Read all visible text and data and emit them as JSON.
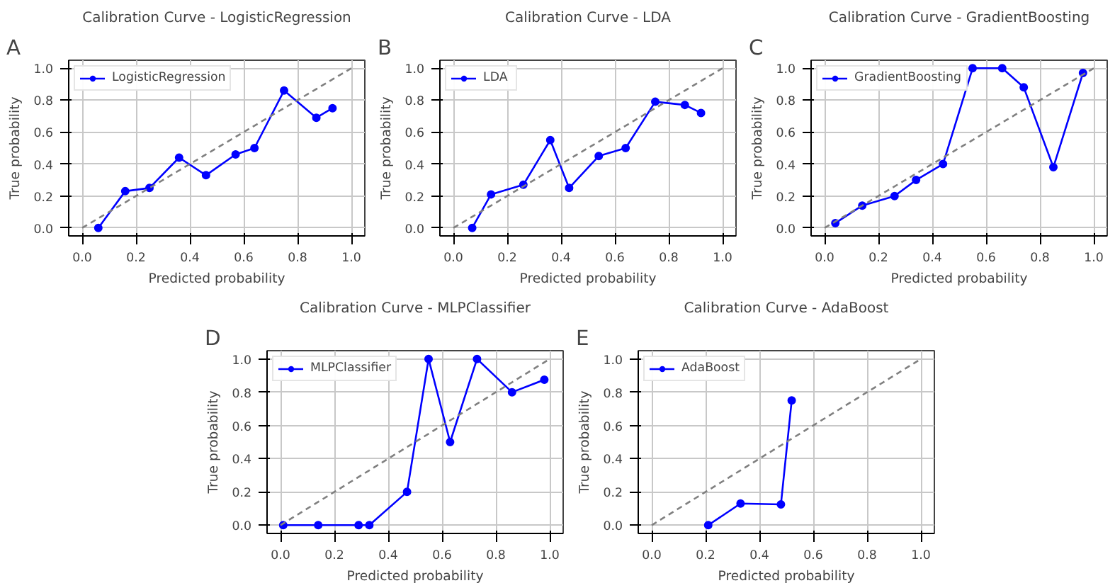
{
  "chart_data": [
    {
      "type": "line",
      "title": "Calibration Curve - LogisticRegression",
      "xlabel": "Predicted probability",
      "ylabel": "True probability",
      "annotations": [
        "A"
      ],
      "xlim": [
        -0.05,
        1.05
      ],
      "ylim": [
        -0.05,
        1.05
      ],
      "xticks": [
        {
          "value": 0,
          "label": "0.0"
        },
        {
          "value": 0.2,
          "label": "0.2"
        },
        {
          "value": 0.4,
          "label": "0.4"
        },
        {
          "value": 0.6,
          "label": "0.6"
        },
        {
          "value": 0.8,
          "label": "0.8"
        },
        {
          "value": 1.0,
          "label": "1.0"
        }
      ],
      "yticks": [
        {
          "value": 0,
          "label": "0.0"
        },
        {
          "value": 0.2,
          "label": "0.2"
        },
        {
          "value": 0.4,
          "label": "0.4"
        },
        {
          "value": 0.6,
          "label": "0.6"
        },
        {
          "value": 0.8,
          "label": "0.8"
        },
        {
          "value": 1.0,
          "label": "1.0"
        }
      ],
      "grid": true,
      "legend": "top left",
      "series": [
        {
          "name": "LogisticRegression",
          "color": "#0000ff",
          "marker": "circle",
          "x": [
            0.06,
            0.16,
            0.25,
            0.36,
            0.46,
            0.57,
            0.64,
            0.75,
            0.87,
            0.93
          ],
          "values": [
            0.0,
            0.23,
            0.25,
            0.44,
            0.33,
            0.46,
            0.5,
            0.86,
            0.69,
            0.75
          ]
        },
        {
          "color": "#808080",
          "marker": "none",
          "line_style": "dashed",
          "x": [
            0,
            1
          ],
          "values": [
            0,
            1
          ]
        }
      ]
    },
    {
      "type": "line",
      "title": "Calibration Curve - LDA",
      "xlabel": "Predicted probability",
      "ylabel": "True probability",
      "annotations": [
        "B"
      ],
      "xlim": [
        -0.05,
        1.05
      ],
      "ylim": [
        -0.05,
        1.05
      ],
      "xticks": [
        {
          "value": 0,
          "label": "0.0"
        },
        {
          "value": 0.2,
          "label": "0.2"
        },
        {
          "value": 0.4,
          "label": "0.4"
        },
        {
          "value": 0.6,
          "label": "0.6"
        },
        {
          "value": 0.8,
          "label": "0.8"
        },
        {
          "value": 1.0,
          "label": "1.0"
        }
      ],
      "yticks": [
        {
          "value": 0,
          "label": "0.0"
        },
        {
          "value": 0.2,
          "label": "0.2"
        },
        {
          "value": 0.4,
          "label": "0.4"
        },
        {
          "value": 0.6,
          "label": "0.6"
        },
        {
          "value": 0.8,
          "label": "0.8"
        },
        {
          "value": 1.0,
          "label": "1.0"
        }
      ],
      "grid": true,
      "legend": "top left",
      "series": [
        {
          "name": "LDA",
          "color": "#0000ff",
          "marker": "circle",
          "x": [
            0.07,
            0.14,
            0.26,
            0.36,
            0.43,
            0.54,
            0.64,
            0.75,
            0.86,
            0.92
          ],
          "values": [
            0.0,
            0.21,
            0.27,
            0.55,
            0.25,
            0.45,
            0.5,
            0.79,
            0.77,
            0.72
          ]
        },
        {
          "color": "#808080",
          "marker": "none",
          "line_style": "dashed",
          "x": [
            0,
            1
          ],
          "values": [
            0,
            1
          ]
        }
      ]
    },
    {
      "type": "line",
      "title": "Calibration Curve - GradientBoosting",
      "xlabel": "Predicted probability",
      "ylabel": "True probability",
      "annotations": [
        "C"
      ],
      "xlim": [
        -0.05,
        1.05
      ],
      "ylim": [
        -0.05,
        1.05
      ],
      "xticks": [
        {
          "value": 0,
          "label": "0.0"
        },
        {
          "value": 0.2,
          "label": "0.2"
        },
        {
          "value": 0.4,
          "label": "0.4"
        },
        {
          "value": 0.6,
          "label": "0.6"
        },
        {
          "value": 0.8,
          "label": "0.8"
        },
        {
          "value": 1.0,
          "label": "1.0"
        }
      ],
      "yticks": [
        {
          "value": 0,
          "label": "0.0"
        },
        {
          "value": 0.2,
          "label": "0.2"
        },
        {
          "value": 0.4,
          "label": "0.4"
        },
        {
          "value": 0.6,
          "label": "0.6"
        },
        {
          "value": 0.8,
          "label": "0.8"
        },
        {
          "value": 1.0,
          "label": "1.0"
        }
      ],
      "grid": true,
      "legend": "top left",
      "series": [
        {
          "name": "GradientBoosting",
          "color": "#0000ff",
          "marker": "circle",
          "x": [
            0.04,
            0.14,
            0.26,
            0.34,
            0.44,
            0.55,
            0.66,
            0.74,
            0.85,
            0.96
          ],
          "values": [
            0.03,
            0.14,
            0.2,
            0.3,
            0.4,
            1.0,
            1.0,
            0.88,
            0.38,
            0.97
          ]
        },
        {
          "color": "#808080",
          "marker": "none",
          "line_style": "dashed",
          "x": [
            0,
            1
          ],
          "values": [
            0,
            1
          ]
        }
      ]
    },
    {
      "type": "line",
      "title": "Calibration Curve - MLPClassifier",
      "xlabel": "Predicted probability",
      "ylabel": "True probability",
      "annotations": [
        "D"
      ],
      "xlim": [
        -0.05,
        1.05
      ],
      "ylim": [
        -0.05,
        1.05
      ],
      "xticks": [
        {
          "value": 0,
          "label": "0.0"
        },
        {
          "value": 0.2,
          "label": "0.2"
        },
        {
          "value": 0.4,
          "label": "0.4"
        },
        {
          "value": 0.6,
          "label": "0.6"
        },
        {
          "value": 0.8,
          "label": "0.8"
        },
        {
          "value": 1.0,
          "label": "1.0"
        }
      ],
      "yticks": [
        {
          "value": 0,
          "label": "0.0"
        },
        {
          "value": 0.2,
          "label": "0.2"
        },
        {
          "value": 0.4,
          "label": "0.4"
        },
        {
          "value": 0.6,
          "label": "0.6"
        },
        {
          "value": 0.8,
          "label": "0.8"
        },
        {
          "value": 1.0,
          "label": "1.0"
        }
      ],
      "grid": true,
      "legend": "top left",
      "series": [
        {
          "name": "MLPClassifier",
          "color": "#0000ff",
          "marker": "circle",
          "x": [
            0.01,
            0.14,
            0.29,
            0.33,
            0.47,
            0.55,
            0.63,
            0.73,
            0.86,
            0.98
          ],
          "values": [
            0.0,
            0.0,
            0.0,
            0.0,
            0.2,
            1.0,
            0.5,
            1.0,
            0.8,
            0.875
          ]
        },
        {
          "color": "#808080",
          "marker": "none",
          "line_style": "dashed",
          "x": [
            0,
            1
          ],
          "values": [
            0,
            1
          ]
        }
      ]
    },
    {
      "type": "line",
      "title": "Calibration Curve - AdaBoost",
      "xlabel": "Predicted probability",
      "ylabel": "True probability",
      "annotations": [
        "E"
      ],
      "xlim": [
        -0.05,
        1.05
      ],
      "ylim": [
        -0.05,
        1.05
      ],
      "xticks": [
        {
          "value": 0,
          "label": "0.0"
        },
        {
          "value": 0.2,
          "label": "0.2"
        },
        {
          "value": 0.4,
          "label": "0.4"
        },
        {
          "value": 0.6,
          "label": "0.6"
        },
        {
          "value": 0.8,
          "label": "0.8"
        },
        {
          "value": 1.0,
          "label": "1.0"
        }
      ],
      "yticks": [
        {
          "value": 0,
          "label": "0.0"
        },
        {
          "value": 0.2,
          "label": "0.2"
        },
        {
          "value": 0.4,
          "label": "0.4"
        },
        {
          "value": 0.6,
          "label": "0.6"
        },
        {
          "value": 0.8,
          "label": "0.8"
        },
        {
          "value": 1.0,
          "label": "1.0"
        }
      ],
      "grid": true,
      "legend": "top left",
      "series": [
        {
          "name": "AdaBoost",
          "color": "#0000ff",
          "marker": "circle",
          "x": [
            0.21,
            0.33,
            0.48,
            0.52
          ],
          "values": [
            0.0,
            0.13,
            0.125,
            0.75
          ]
        },
        {
          "color": "#808080",
          "marker": "none",
          "line_style": "dashed",
          "x": [
            0,
            1
          ],
          "values": [
            0,
            1
          ]
        }
      ]
    }
  ]
}
